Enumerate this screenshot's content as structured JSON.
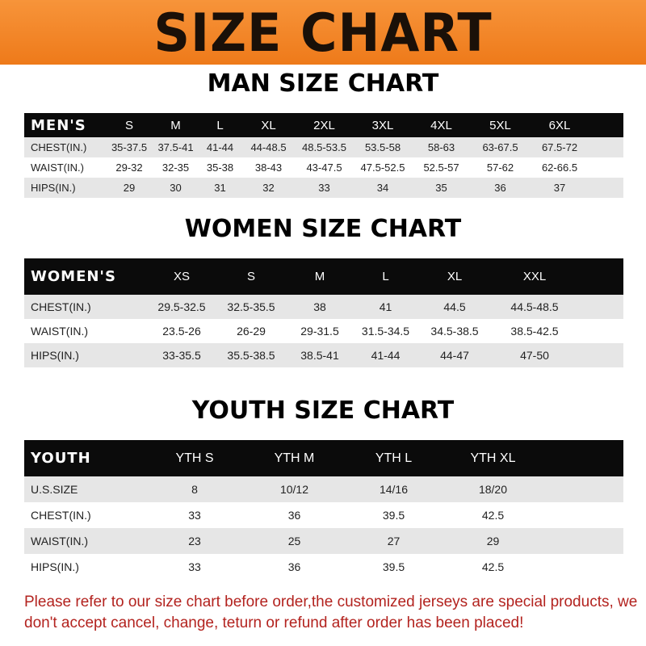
{
  "title": "SIZE CHART",
  "colors": {
    "banner": "#f08020",
    "header_row": "#0b0b0b",
    "note": "#b3231f"
  },
  "men": {
    "title": "MAN SIZE CHART",
    "header": [
      "MEN'S",
      "S",
      "M",
      "L",
      "XL",
      "2XL",
      "3XL",
      "4XL",
      "5XL",
      "6XL"
    ],
    "rows": [
      [
        "CHEST(IN.)",
        "35-37.5",
        "37.5-41",
        "41-44",
        "44-48.5",
        "48.5-53.5",
        "53.5-58",
        "58-63",
        "63-67.5",
        "67.5-72"
      ],
      [
        "WAIST(IN.)",
        "29-32",
        "32-35",
        "35-38",
        "38-43",
        "43-47.5",
        "47.5-52.5",
        "52.5-57",
        "57-62",
        "62-66.5"
      ],
      [
        "HIPS(IN.)",
        "29",
        "30",
        "31",
        "32",
        "33",
        "34",
        "35",
        "36",
        "37"
      ]
    ]
  },
  "women": {
    "title": "WOMEN SIZE CHART",
    "header": [
      "WOMEN'S",
      "XS",
      "S",
      "M",
      "L",
      "XL",
      "XXL"
    ],
    "rows": [
      [
        "CHEST(IN.)",
        "29.5-32.5",
        "32.5-35.5",
        "38",
        "41",
        "44.5",
        "44.5-48.5"
      ],
      [
        "WAIST(IN.)",
        "23.5-26",
        "26-29",
        "29-31.5",
        "31.5-34.5",
        "34.5-38.5",
        "38.5-42.5"
      ],
      [
        "HIPS(IN.)",
        "33-35.5",
        "35.5-38.5",
        "38.5-41",
        "41-44",
        "44-47",
        "47-50"
      ]
    ]
  },
  "youth": {
    "title": "YOUTH SIZE CHART",
    "header": [
      "YOUTH",
      "YTH S",
      "YTH M",
      "YTH L",
      "YTH XL"
    ],
    "rows": [
      [
        "U.S.SIZE",
        "8",
        "10/12",
        "14/16",
        "18/20"
      ],
      [
        "CHEST(IN.)",
        "33",
        "36",
        "39.5",
        "42.5"
      ],
      [
        "WAIST(IN.)",
        "23",
        "25",
        "27",
        "29"
      ],
      [
        "HIPS(IN.)",
        "33",
        "36",
        "39.5",
        "42.5"
      ]
    ]
  },
  "note": "Please refer to our size chart before order,the customized jerseys are special products, we don't accept cancel, change, teturn or refund after order has been placed!"
}
